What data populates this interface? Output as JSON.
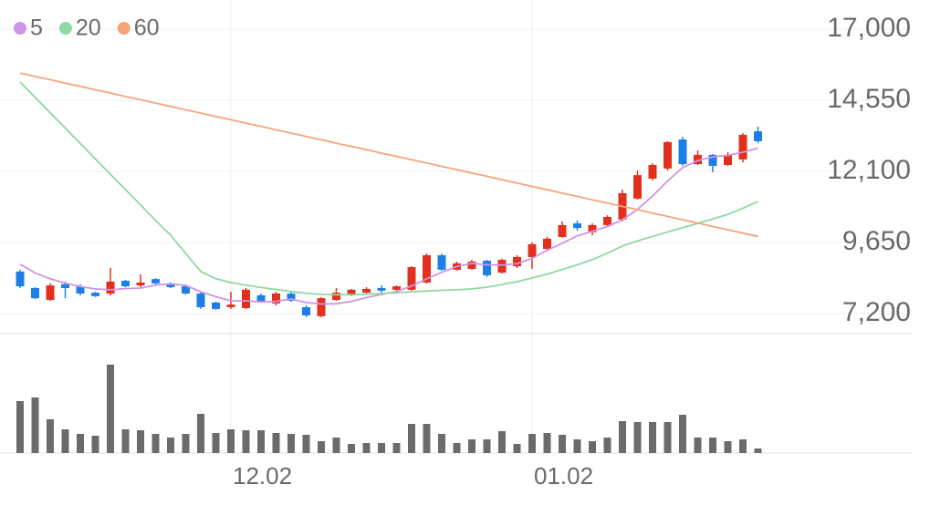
{
  "chart_data": [
    {
      "type": "candlestick",
      "categories": [
        null,
        null,
        null,
        null,
        null,
        null,
        null,
        null,
        null,
        null,
        null,
        null,
        null,
        null,
        "12.02",
        null,
        null,
        null,
        null,
        null,
        null,
        null,
        null,
        null,
        null,
        null,
        null,
        null,
        null,
        null,
        null,
        null,
        null,
        null,
        "01.02",
        null,
        null,
        null,
        null,
        null,
        null,
        null,
        null,
        null,
        null,
        null,
        null,
        null,
        null,
        null
      ],
      "open": [
        8650,
        8080,
        7670,
        8210,
        8140,
        7920,
        7890,
        8330,
        8170,
        8390,
        8240,
        8140,
        7890,
        7580,
        7420,
        7390,
        7830,
        7550,
        7890,
        7420,
        7110,
        7670,
        7830,
        7920,
        8080,
        8020,
        8020,
        8270,
        9210,
        8710,
        8740,
        9020,
        8610,
        8830,
        9150,
        9430,
        9840,
        10310,
        10000,
        10250,
        10440,
        11160,
        11850,
        12200,
        13200,
        12350,
        12670,
        12320,
        12510,
        13480
      ],
      "high": [
        8710,
        8110,
        8240,
        8300,
        8210,
        7950,
        8770,
        8360,
        8550,
        8420,
        8270,
        8210,
        7950,
        7610,
        7950,
        8080,
        7890,
        7950,
        7950,
        7480,
        7770,
        8080,
        8050,
        8110,
        8170,
        8170,
        8830,
        9270,
        9270,
        8990,
        9050,
        9050,
        9090,
        9210,
        9650,
        9840,
        10370,
        10410,
        10310,
        10590,
        11470,
        12130,
        12380,
        13140,
        13290,
        12820,
        12700,
        12760,
        13420,
        13640
      ],
      "low": [
        8080,
        7700,
        7640,
        7730,
        7830,
        7770,
        7830,
        8110,
        8110,
        8210,
        8080,
        7860,
        7360,
        7330,
        7360,
        7360,
        7580,
        7480,
        7610,
        7080,
        7080,
        7640,
        7800,
        7890,
        7920,
        7990,
        7990,
        8240,
        8680,
        8680,
        8710,
        8460,
        8580,
        8770,
        8740,
        9400,
        9810,
        10060,
        9900,
        10220,
        10370,
        11130,
        11790,
        12130,
        12290,
        12320,
        12070,
        12290,
        12410,
        13080
      ],
      "close": [
        8140,
        7730,
        8170,
        8080,
        7890,
        7800,
        8300,
        8140,
        8270,
        8240,
        8110,
        7890,
        7420,
        7360,
        7510,
        8020,
        7610,
        7890,
        7640,
        7140,
        7730,
        7920,
        8020,
        8050,
        7990,
        8140,
        8800,
        9210,
        8710,
        8930,
        8990,
        8520,
        9050,
        9150,
        9590,
        9780,
        10250,
        10150,
        10250,
        10530,
        11350,
        11970,
        12320,
        13110,
        12350,
        12670,
        12290,
        12670,
        13360,
        13140
      ],
      "up_color": "#e2301c",
      "down_color": "#1d7fe6",
      "series": [
        {
          "name": "5",
          "color": "#cf94e6",
          "values": [
            8900,
            8600,
            8400,
            8250,
            8130,
            8050,
            8020,
            8060,
            8080,
            8180,
            8220,
            8170,
            7950,
            7780,
            7640,
            7640,
            7600,
            7620,
            7700,
            7580,
            7530,
            7540,
            7620,
            7750,
            7860,
            7960,
            8150,
            8400,
            8620,
            8820,
            8930,
            8880,
            8870,
            8920,
            9100,
            9380,
            9620,
            9880,
            10030,
            10200,
            10430,
            10790,
            11250,
            11770,
            12230,
            12470,
            12600,
            12650,
            12760,
            12900
          ]
        },
        {
          "name": "20",
          "color": "#8fd9a2",
          "values": [
            15180,
            14650,
            14120,
            13590,
            13060,
            12530,
            12000,
            11470,
            10940,
            10410,
            9900,
            9270,
            8650,
            8400,
            8270,
            8180,
            8100,
            8030,
            7960,
            7900,
            7860,
            7850,
            7850,
            7870,
            7890,
            7920,
            7950,
            7980,
            8000,
            8020,
            8050,
            8110,
            8200,
            8300,
            8430,
            8560,
            8720,
            8880,
            9060,
            9280,
            9530,
            9700,
            9860,
            10010,
            10160,
            10310,
            10460,
            10620,
            10830,
            11060
          ]
        },
        {
          "name": "60",
          "color": "#f5a47c",
          "values": [
            15490,
            15370,
            15260,
            15140,
            15030,
            14910,
            14800,
            14680,
            14570,
            14450,
            14340,
            14220,
            14110,
            13990,
            13880,
            13760,
            13650,
            13530,
            13420,
            13300,
            13190,
            13070,
            12960,
            12850,
            12730,
            12620,
            12500,
            12390,
            12270,
            12160,
            12040,
            11930,
            11810,
            11700,
            11580,
            11470,
            11350,
            11240,
            11120,
            11010,
            10890,
            10780,
            10660,
            10550,
            10430,
            10320,
            10200,
            10090,
            9970,
            9860
          ]
        }
      ],
      "ylim": [
        7200,
        17000
      ],
      "yticks": [
        {
          "value": 7200,
          "label": "7,200"
        },
        {
          "value": 9650,
          "label": "9,650"
        },
        {
          "value": 12100,
          "label": "12,100"
        },
        {
          "value": 14550,
          "label": "14,550"
        },
        {
          "value": 17000,
          "label": "17,000"
        }
      ],
      "grid": true
    },
    {
      "type": "bar",
      "color": "#6b6b6b",
      "values": [
        57,
        61,
        37,
        26,
        21,
        19,
        97,
        26,
        25,
        21,
        17,
        21,
        43,
        22,
        26,
        25,
        25,
        22,
        21,
        20,
        13,
        17,
        10,
        11,
        11,
        11,
        32,
        32,
        21,
        11,
        15,
        15,
        24,
        10,
        21,
        22,
        20,
        15,
        13,
        17,
        35,
        34,
        34,
        34,
        42,
        17,
        17,
        13,
        15,
        5
      ],
      "ylim": [
        0,
        100
      ]
    }
  ]
}
